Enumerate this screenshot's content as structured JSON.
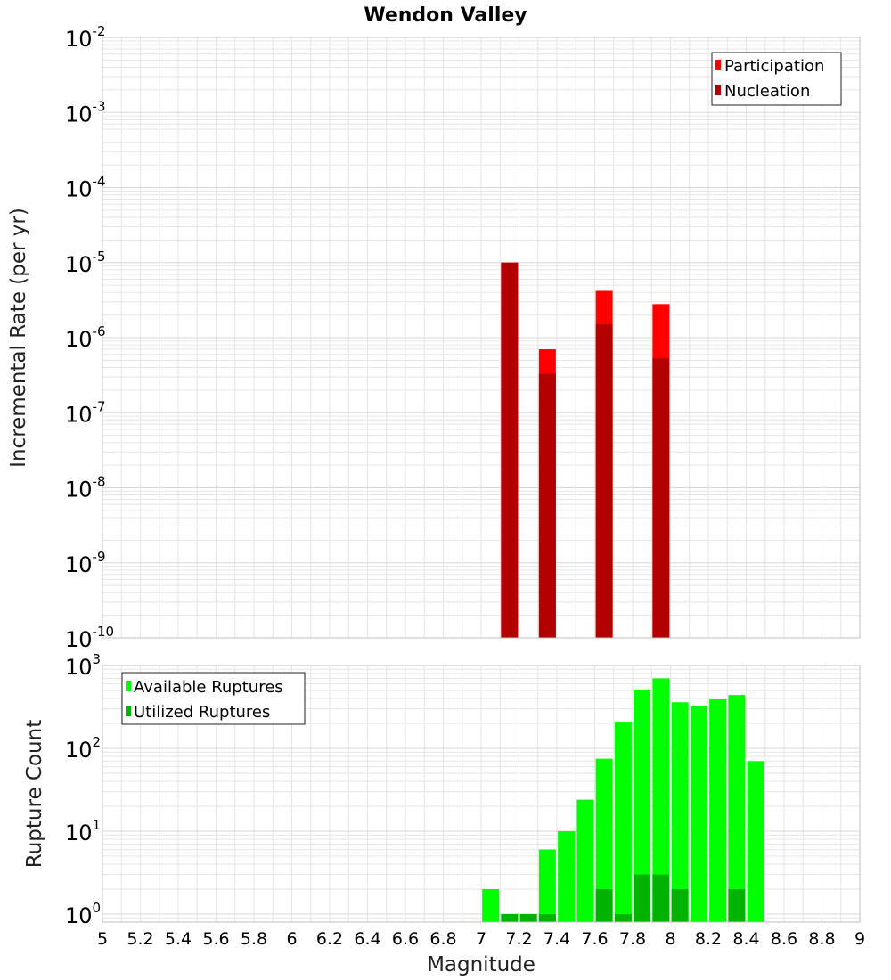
{
  "title": "Wendon Valley",
  "colors": {
    "participation": "#ff0000",
    "nucleation": "#b30000",
    "available": "#00ff00",
    "utilized": "#00b300",
    "grid": "#e6e6e6",
    "frame": "#c0c0c0"
  },
  "chart_data": [
    {
      "type": "bar",
      "ylabel": "Incremental Rate (per yr)",
      "yscale": "log",
      "ylim": [
        1e-10,
        0.01
      ],
      "grid": true,
      "legend_position": "top-right",
      "y_ticks": [
        {
          "base": "10",
          "exp": "-10"
        },
        {
          "base": "10",
          "exp": "-9"
        },
        {
          "base": "10",
          "exp": "-8"
        },
        {
          "base": "10",
          "exp": "-7"
        },
        {
          "base": "10",
          "exp": "-6"
        },
        {
          "base": "10",
          "exp": "-5"
        },
        {
          "base": "10",
          "exp": "-4"
        },
        {
          "base": "10",
          "exp": "-3"
        },
        {
          "base": "10",
          "exp": "-2"
        }
      ],
      "series": [
        {
          "name": "Participation",
          "x": [
            7.15,
            7.35,
            7.65,
            7.95
          ],
          "values": [
            1e-05,
            7e-07,
            4.2e-06,
            2.8e-06
          ]
        },
        {
          "name": "Nucleation",
          "x": [
            7.15,
            7.35,
            7.65,
            7.95
          ],
          "values": [
            1e-05,
            3.3e-07,
            1.5e-06,
            5.3e-07
          ]
        }
      ]
    },
    {
      "type": "bar",
      "ylabel": "Rupture Count",
      "xlabel": "Magnitude",
      "yscale": "log",
      "ylim": [
        0.8,
        1000
      ],
      "xlim": [
        5,
        9
      ],
      "grid": true,
      "legend_position": "top-left",
      "y_ticks": [
        {
          "base": "10",
          "exp": "0"
        },
        {
          "base": "10",
          "exp": "1"
        },
        {
          "base": "10",
          "exp": "2"
        },
        {
          "base": "10",
          "exp": "3"
        }
      ],
      "x_ticks": [
        "5",
        "5.2",
        "5.4",
        "5.6",
        "5.8",
        "6",
        "6.2",
        "6.4",
        "6.6",
        "6.8",
        "7",
        "7.2",
        "7.4",
        "7.6",
        "7.8",
        "8",
        "8.2",
        "8.4",
        "8.6",
        "8.8",
        "9"
      ],
      "series": [
        {
          "name": "Available Ruptures",
          "x": [
            7.05,
            7.15,
            7.25,
            7.35,
            7.45,
            7.55,
            7.65,
            7.75,
            7.85,
            7.95,
            8.05,
            8.15,
            8.25,
            8.35,
            8.45
          ],
          "values": [
            2,
            1,
            1,
            6,
            10,
            24,
            75,
            210,
            500,
            700,
            360,
            320,
            390,
            440,
            70
          ]
        },
        {
          "name": "Utilized Ruptures",
          "x": [
            7.15,
            7.25,
            7.35,
            7.65,
            7.75,
            7.85,
            7.95,
            8.05,
            8.35
          ],
          "values": [
            1,
            1,
            1,
            2,
            1,
            3,
            3,
            2,
            2
          ]
        }
      ]
    }
  ]
}
